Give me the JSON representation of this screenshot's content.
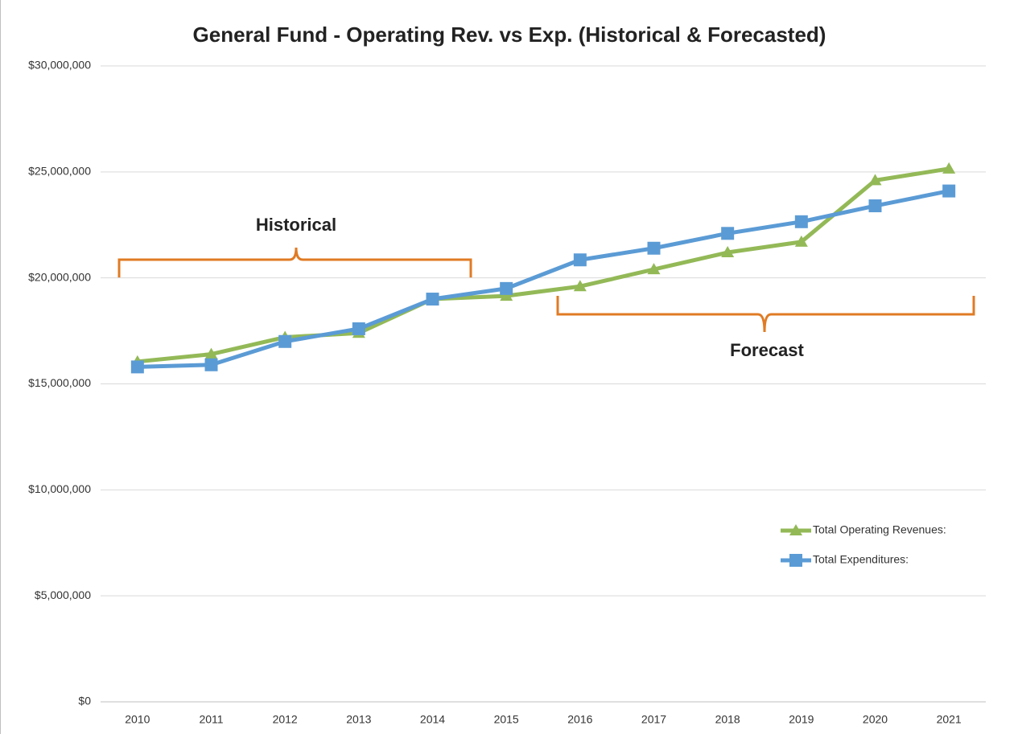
{
  "chart_data": {
    "type": "line",
    "title": "General Fund - Operating Rev. vs Exp. (Historical & Forecasted)",
    "categories": [
      "2010",
      "2011",
      "2012",
      "2013",
      "2014",
      "2015",
      "2016",
      "2017",
      "2018",
      "2019",
      "2020",
      "2021"
    ],
    "series": [
      {
        "name": "Total Operating Revenues:",
        "color": "#93b957",
        "marker": "triangle",
        "values": [
          16050000,
          16400000,
          17200000,
          17400000,
          19000000,
          19150000,
          19600000,
          20400000,
          21200000,
          21700000,
          24600000,
          25150000
        ]
      },
      {
        "name": "Total Expenditures:",
        "color": "#5b9bd5",
        "marker": "square",
        "values": [
          15800000,
          15900000,
          17000000,
          17600000,
          19000000,
          19500000,
          20850000,
          21400000,
          22100000,
          22650000,
          23400000,
          24100000
        ]
      }
    ],
    "ylim": [
      0,
      30000000
    ],
    "yticks": [
      {
        "value": 0,
        "label": "$0"
      },
      {
        "value": 5000000,
        "label": "$5,000,000"
      },
      {
        "value": 10000000,
        "label": "$10,000,000"
      },
      {
        "value": 15000000,
        "label": "$15,000,000"
      },
      {
        "value": 20000000,
        "label": "$20,000,000"
      },
      {
        "value": 25000000,
        "label": "$25,000,000"
      },
      {
        "value": 30000000,
        "label": "$30,000,000"
      }
    ],
    "grid": true,
    "legend_position": "right",
    "annotations": [
      "Historical",
      "Forecast"
    ]
  }
}
